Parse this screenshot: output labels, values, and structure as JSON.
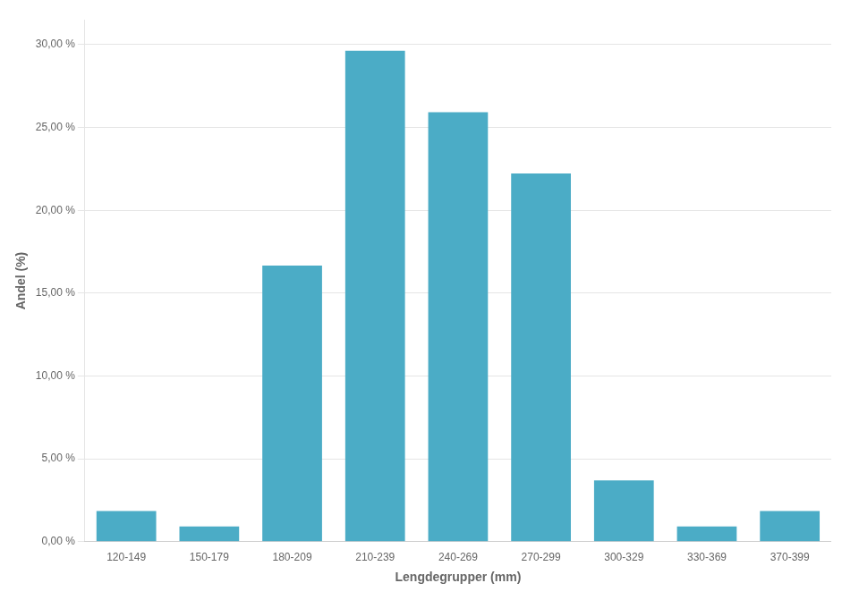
{
  "chart_data": {
    "type": "bar",
    "categories": [
      "120-149",
      "150-179",
      "180-209",
      "210-239",
      "240-269",
      "270-299",
      "300-329",
      "330-369",
      "370-399"
    ],
    "values": [
      1.852,
      0.926,
      16.667,
      29.63,
      25.926,
      22.222,
      3.704,
      0.926,
      1.852
    ],
    "color": "#4BACC6",
    "xlabel": "Lengdegrupper (mm)",
    "ylabel": "Andel (%)",
    "ylim": [
      0,
      31.5
    ],
    "yticks": [
      {
        "value": 0,
        "label": "0,00 %"
      },
      {
        "value": 5,
        "label": "5,00 %"
      },
      {
        "value": 10,
        "label": "10,00 %"
      },
      {
        "value": 15,
        "label": "15,00 %"
      },
      {
        "value": 20,
        "label": "20,00 %"
      },
      {
        "value": 25,
        "label": "25,00 %"
      },
      {
        "value": 30,
        "label": "30,00 %"
      }
    ],
    "grid": true
  }
}
